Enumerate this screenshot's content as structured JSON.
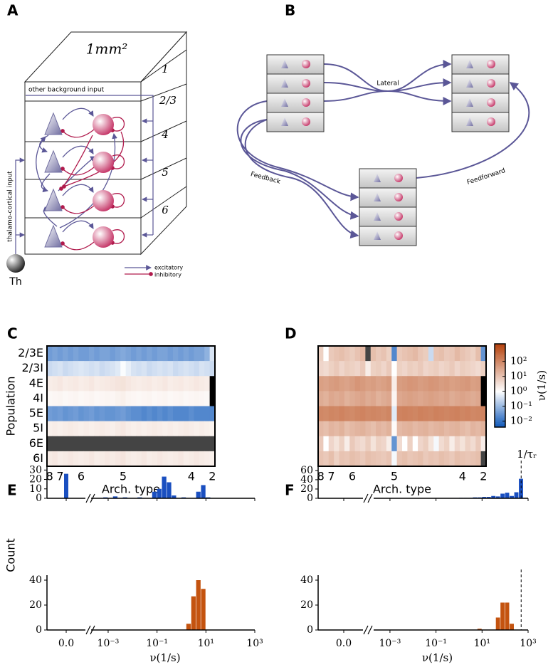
{
  "panel_labels": [
    "A",
    "B",
    "C",
    "D",
    "E",
    "F"
  ],
  "diagram_a": {
    "area": "1mm²",
    "layers": [
      "1",
      "2/3",
      "4",
      "5",
      "6"
    ],
    "background_input": "other background input",
    "thalamic_input": "thalamo-cortical input",
    "thalamus": "Th",
    "legend": [
      "excitatory",
      "inhibitory"
    ]
  },
  "diagram_b": {
    "lateral": "Lateral",
    "feedback": "Feedback",
    "feedforward": "Feedforward"
  },
  "chart_data": [
    {
      "type": "heatmap",
      "xlabel": "Arch. type",
      "ylabel": "Population",
      "categories": [
        "8",
        null,
        "7",
        null,
        null,
        null,
        "6",
        null,
        null,
        null,
        null,
        null,
        null,
        null,
        "5",
        null,
        null,
        null,
        null,
        null,
        null,
        null,
        null,
        null,
        null,
        null,
        null,
        "4",
        null,
        null,
        null,
        "2"
      ],
      "rows": [
        "2/3E",
        "2/3I",
        "4E",
        "4I",
        "5E",
        "5I",
        "6E",
        "6I"
      ],
      "values": [
        [
          0.04,
          0.05,
          0.04,
          0.05,
          0.04,
          0.05,
          0.04,
          0.04,
          0.05,
          0.04,
          0.05,
          0.05,
          0.04,
          0.05,
          0.06,
          0.05,
          0.04,
          0.05,
          0.04,
          0.05,
          0.04,
          0.05,
          0.05,
          0.04,
          0.05,
          0.04,
          0.05,
          0.04,
          0.05,
          0.05,
          0.08,
          0.4
        ],
        [
          0.3,
          0.35,
          0.4,
          0.3,
          0.35,
          0.4,
          0.45,
          0.4,
          0.35,
          0.4,
          0.3,
          0.35,
          0.4,
          0.5,
          0.9,
          0.6,
          0.4,
          0.35,
          0.4,
          0.3,
          0.35,
          0.4,
          0.35,
          0.4,
          0.3,
          0.35,
          0.4,
          0.35,
          0.3,
          0.4,
          0.35,
          0.3
        ],
        [
          2,
          2.2,
          2.5,
          2,
          2.2,
          2.3,
          2,
          2.2,
          2.5,
          2,
          2.2,
          2.3,
          2.5,
          2.8,
          3,
          2.5,
          2.2,
          2,
          2.2,
          2.3,
          2,
          2.2,
          2.5,
          2,
          2.2,
          2.3,
          2,
          2.2,
          2.5,
          2.2,
          2,
          null
        ],
        [
          1.3,
          1.4,
          1.5,
          1.3,
          1.4,
          1.5,
          1.3,
          1.4,
          1.5,
          1.3,
          1.4,
          1.5,
          1.4,
          1.6,
          1.8,
          1.5,
          1.4,
          1.3,
          1.4,
          1.5,
          1.3,
          1.4,
          1.5,
          1.3,
          1.4,
          1.5,
          1.3,
          1.4,
          1.5,
          1.4,
          1.3,
          null
        ],
        [
          0.04,
          0.035,
          0.04,
          0.03,
          0.035,
          0.04,
          0.03,
          0.035,
          0.04,
          0.03,
          0.035,
          0.03,
          0.03,
          0.035,
          0.04,
          0.03,
          0.025,
          0.025,
          0.02,
          0.025,
          0.02,
          0.025,
          0.02,
          0.025,
          0.02,
          0.02,
          0.02,
          0.025,
          0.02,
          0.02,
          0.02,
          0.02
        ],
        [
          1.8,
          2,
          1.8,
          2,
          2.2,
          2,
          1.8,
          2,
          1.8,
          2,
          2.2,
          2,
          1.8,
          2.2,
          2.5,
          2,
          1.8,
          2,
          1.8,
          2,
          2.2,
          2,
          1.8,
          2,
          1.8,
          2,
          2.2,
          2,
          1.8,
          2,
          1.8,
          1.6
        ],
        [
          0,
          0,
          0,
          0,
          0,
          0,
          0,
          0,
          0,
          0,
          0,
          0,
          0,
          0,
          0,
          0,
          0,
          0,
          0,
          0,
          0,
          0,
          0,
          0,
          0,
          0,
          0,
          0,
          0,
          0,
          0,
          0
        ],
        [
          2.2,
          2.5,
          2,
          2.2,
          2.5,
          2.2,
          2,
          2.2,
          2.5,
          2,
          2.2,
          2.5,
          2.2,
          2.5,
          2.8,
          2.2,
          2,
          2.2,
          2.5,
          2,
          2.2,
          2.5,
          2.2,
          2,
          2.2,
          2.5,
          2,
          2.2,
          2.5,
          2.2,
          2,
          1.8
        ]
      ],
      "log": true,
      "clim": [
        0.004,
        1500
      ],
      "colors": [
        "#0b56b8",
        "#ffffff",
        "#b5420c"
      ],
      "zero_color": "#444444",
      "null_color": "#000000"
    },
    {
      "type": "heatmap",
      "xlabel": "Arch. type",
      "categories": [
        "8",
        null,
        "7",
        null,
        null,
        null,
        "6",
        null,
        null,
        null,
        null,
        null,
        null,
        null,
        "5",
        null,
        null,
        null,
        null,
        null,
        null,
        null,
        null,
        null,
        null,
        null,
        null,
        "4",
        null,
        null,
        null,
        "2"
      ],
      "values": [
        [
          6,
          1,
          8,
          10,
          12,
          9,
          7,
          10,
          15,
          0,
          12,
          8,
          10,
          6,
          0.02,
          8,
          10,
          12,
          15,
          9,
          7,
          0.3,
          10,
          12,
          8,
          9,
          15,
          10,
          8,
          6,
          12,
          0.03
        ],
        [
          5,
          4,
          6,
          8,
          5,
          7,
          6,
          5,
          8,
          2,
          6,
          7,
          5,
          8,
          1,
          6,
          5,
          7,
          6,
          8,
          5,
          6,
          7,
          5,
          6,
          8,
          5,
          7,
          6,
          5,
          4,
          6
        ],
        [
          40,
          35,
          45,
          50,
          40,
          35,
          45,
          60,
          50,
          40,
          45,
          35,
          40,
          50,
          2,
          45,
          50,
          60,
          55,
          45,
          50,
          60,
          55,
          45,
          50,
          40,
          45,
          50,
          55,
          40,
          45,
          null
        ],
        [
          25,
          20,
          30,
          25,
          30,
          20,
          25,
          30,
          35,
          25,
          30,
          20,
          25,
          30,
          1.5,
          30,
          35,
          40,
          35,
          30,
          35,
          40,
          35,
          30,
          35,
          25,
          30,
          35,
          30,
          25,
          30,
          null
        ],
        [
          100,
          90,
          110,
          100,
          120,
          100,
          90,
          110,
          120,
          100,
          110,
          100,
          90,
          110,
          0.5,
          120,
          130,
          120,
          110,
          130,
          120,
          110,
          130,
          120,
          110,
          120,
          130,
          110,
          120,
          100,
          110,
          120
        ],
        [
          15,
          12,
          18,
          15,
          20,
          12,
          15,
          18,
          20,
          15,
          12,
          18,
          15,
          20,
          1.2,
          15,
          18,
          20,
          15,
          18,
          20,
          15,
          18,
          20,
          15,
          18,
          20,
          15,
          12,
          18,
          15,
          20
        ],
        [
          8,
          1,
          5,
          3,
          6,
          2,
          8,
          5,
          4,
          7,
          3,
          6,
          5,
          2,
          0.03,
          4,
          1,
          6,
          1,
          5,
          7,
          3,
          0.8,
          4,
          6,
          2,
          5,
          3,
          6,
          4,
          8,
          2
        ],
        [
          10,
          8,
          12,
          6,
          10,
          9,
          12,
          10,
          8,
          12,
          10,
          9,
          8,
          10,
          0.8,
          10,
          12,
          9,
          10,
          12,
          8,
          10,
          9,
          12,
          10,
          8,
          12,
          10,
          9,
          10,
          12,
          0
        ]
      ],
      "log": true,
      "clim": [
        0.004,
        1500
      ],
      "colors": [
        "#0b56b8",
        "#ffffff",
        "#b5420c"
      ],
      "zero_color": "#444444",
      "null_color": "#000000",
      "colorbar": {
        "label": "ν(1/s)",
        "ticks": [
          {
            "value": 0.01,
            "label": "10⁻²"
          },
          {
            "value": 0.1,
            "label": "10⁻¹"
          },
          {
            "value": 1,
            "label": "10⁰"
          },
          {
            "value": 10,
            "label": "10¹"
          },
          {
            "value": 100,
            "label": "10²"
          }
        ]
      }
    },
    {
      "type": "histogram",
      "ylabel": "Count",
      "bins": [
        0.000398,
        0.000631,
        0.001,
        0.00158,
        0.00251,
        0.00398,
        0.00631,
        0.01,
        0.0158,
        0.0251,
        0.0398,
        0.0631,
        0.1,
        0.158,
        0.251,
        0.398,
        0.631,
        1,
        1.58,
        2.51,
        3.98,
        6.31,
        10,
        15.8,
        25.1,
        39.8,
        63.1,
        100,
        158,
        251,
        398,
        631,
        1000
      ],
      "counts": [
        0,
        1,
        0,
        2,
        0,
        1,
        0,
        0,
        1,
        0,
        0,
        7,
        10,
        23,
        17,
        3,
        0,
        1,
        0,
        0,
        7,
        14,
        1,
        0,
        0,
        0,
        0,
        0,
        0,
        0,
        0,
        0
      ],
      "zero_count": 26,
      "color": "#1a4fc0",
      "xlim": [
        0.0003,
        1000
      ],
      "ylim": [
        0,
        34
      ],
      "yticks": [
        0,
        10,
        20,
        30
      ]
    },
    {
      "type": "histogram",
      "xlabel": "ν(1/s)",
      "bins": [
        0.000398,
        0.000631,
        0.001,
        0.00158,
        0.00251,
        0.00398,
        0.00631,
        0.01,
        0.0158,
        0.0251,
        0.0398,
        0.0631,
        0.1,
        0.158,
        0.251,
        0.398,
        0.631,
        1,
        1.58,
        2.51,
        3.98,
        6.31,
        10,
        15.8,
        25.1,
        39.8,
        63.1,
        100,
        158,
        251,
        398,
        631,
        1000
      ],
      "counts": [
        0,
        0,
        0,
        0,
        0,
        0,
        0,
        0,
        0,
        0,
        0,
        0,
        0,
        0,
        0,
        0,
        0,
        0,
        5,
        27,
        40,
        33,
        0,
        0,
        0,
        0,
        0,
        0,
        0,
        0,
        0,
        0
      ],
      "zero_count": 0,
      "color": "#c4530f",
      "xlim": [
        0.0003,
        1000
      ],
      "ylim": [
        0,
        44
      ],
      "yticks": [
        0,
        20,
        40
      ],
      "xticks": [
        {
          "value": 0,
          "label": "0.0"
        },
        {
          "value": 0.001,
          "label": "10⁻³"
        },
        {
          "value": 0.1,
          "label": "10⁻¹"
        },
        {
          "value": 10,
          "label": "10¹"
        },
        {
          "value": 1000,
          "label": "10³"
        }
      ]
    },
    {
      "type": "histogram",
      "bins": [
        0.000398,
        0.000631,
        0.001,
        0.00158,
        0.00251,
        0.00398,
        0.00631,
        0.01,
        0.0158,
        0.0251,
        0.0398,
        0.0631,
        0.1,
        0.158,
        0.251,
        0.398,
        0.631,
        1,
        1.58,
        2.51,
        3.98,
        6.31,
        10,
        15.8,
        25.1,
        39.8,
        63.1,
        100,
        158,
        251,
        398,
        631,
        1000
      ],
      "counts": [
        0,
        0,
        0,
        0,
        0,
        0,
        0,
        0,
        0,
        0,
        0,
        0,
        0,
        0,
        0,
        0,
        0,
        1,
        1,
        1,
        2,
        2,
        3,
        3,
        5,
        4,
        10,
        12,
        5,
        13,
        42,
        0
      ],
      "zero_count": 0,
      "color": "#1a4fc0",
      "xlim": [
        0.0003,
        1000
      ],
      "ylim": [
        0,
        69
      ],
      "yticks": [
        0,
        20,
        40,
        60
      ],
      "vline": {
        "value": 500,
        "label": "1/τᵣ"
      }
    },
    {
      "type": "histogram",
      "xlabel": "ν(1/s)",
      "bins": [
        0.000398,
        0.000631,
        0.001,
        0.00158,
        0.00251,
        0.00398,
        0.00631,
        0.01,
        0.0158,
        0.0251,
        0.0398,
        0.0631,
        0.1,
        0.158,
        0.251,
        0.398,
        0.631,
        1,
        1.58,
        2.51,
        3.98,
        6.31,
        10,
        15.8,
        25.1,
        39.8,
        63.1,
        100,
        158,
        251,
        398,
        631,
        1000
      ],
      "counts": [
        0,
        0,
        0,
        0,
        0,
        0,
        0,
        0,
        0,
        0,
        0,
        0,
        0,
        0,
        0,
        0,
        0,
        0,
        0,
        0,
        0,
        1,
        0,
        0,
        0,
        10,
        22,
        22,
        5,
        0,
        0,
        0
      ],
      "zero_count": 0,
      "color": "#c4530f",
      "xlim": [
        0.0003,
        1000
      ],
      "ylim": [
        0,
        44
      ],
      "yticks": [
        0,
        20,
        40
      ],
      "xticks": [
        {
          "value": 0,
          "label": "0.0"
        },
        {
          "value": 0.001,
          "label": "10⁻³"
        },
        {
          "value": 0.1,
          "label": "10⁻¹"
        },
        {
          "value": 10,
          "label": "10¹"
        },
        {
          "value": 1000,
          "label": "10³"
        }
      ],
      "vline": {
        "value": 500
      }
    }
  ]
}
